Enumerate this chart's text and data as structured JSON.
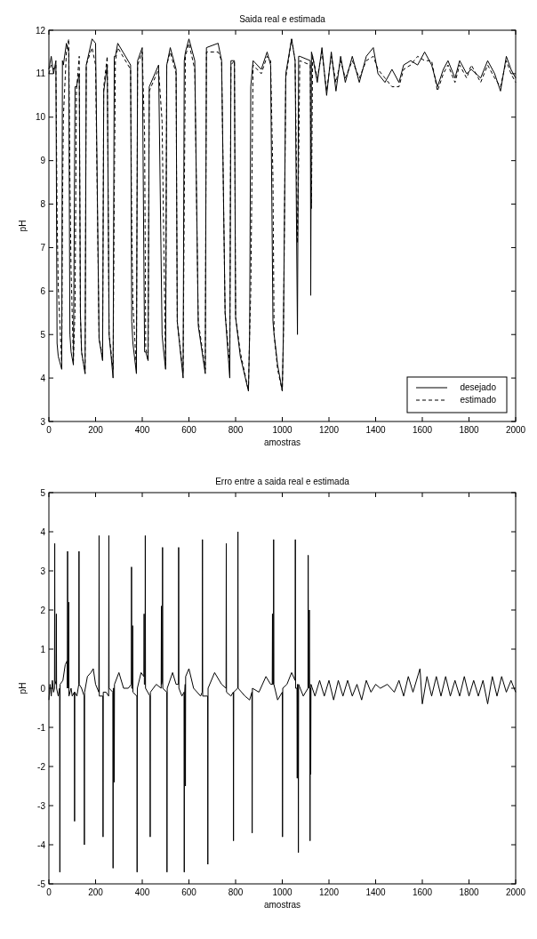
{
  "chart_data": [
    {
      "type": "line",
      "title": "Saida real e estimada",
      "xlabel": "amostras",
      "ylabel": "pH",
      "xlim": [
        0,
        2000
      ],
      "xticks": [
        0,
        200,
        400,
        600,
        800,
        1000,
        1200,
        1400,
        1600,
        1800,
        2000
      ],
      "ylim": [
        3,
        12
      ],
      "yticks": [
        3,
        4,
        5,
        6,
        7,
        8,
        9,
        10,
        11,
        12
      ],
      "grid": false,
      "legend": "bottom right",
      "x": [
        0,
        10,
        20,
        30,
        35,
        40,
        55,
        58,
        62,
        75,
        85,
        90,
        95,
        105,
        112,
        118,
        130,
        135,
        140,
        155,
        160,
        185,
        200,
        215,
        230,
        235,
        250,
        258,
        275,
        280,
        285,
        295,
        350,
        355,
        360,
        375,
        380,
        400,
        410,
        415,
        425,
        430,
        470,
        485,
        490,
        500,
        505,
        520,
        545,
        550,
        575,
        580,
        585,
        600,
        625,
        640,
        670,
        675,
        725,
        740,
        755,
        775,
        780,
        795,
        800,
        820,
        855,
        860,
        865,
        875,
        910,
        935,
        950,
        960,
        965,
        980,
        1000,
        1005,
        1015,
        1040,
        1055,
        1065,
        1070,
        1075,
        1120,
        1122,
        1125,
        1130,
        1150,
        1170,
        1190,
        1210,
        1230,
        1250,
        1270,
        1300,
        1330,
        1360,
        1390,
        1410,
        1440,
        1470,
        1500,
        1520,
        1550,
        1580,
        1610,
        1640,
        1665,
        1690,
        1710,
        1740,
        1760,
        1790,
        1810,
        1850,
        1880,
        1910,
        1935,
        1960,
        1980,
        2000
      ],
      "series": [
        {
          "name": "desejado",
          "color": "#000000",
          "line_style": "solid",
          "values": [
            11.1,
            11.4,
            11.0,
            11.3,
            4.8,
            4.5,
            4.2,
            11.3,
            11.2,
            11.7,
            11.5,
            5.0,
            4.6,
            4.3,
            10.7,
            10.7,
            11.0,
            5.5,
            4.6,
            4.1,
            11.2,
            11.8,
            11.7,
            4.9,
            4.4,
            10.6,
            11.2,
            5.0,
            4.0,
            11.4,
            11.4,
            11.7,
            11.2,
            5.3,
            4.8,
            4.1,
            11.3,
            11.6,
            4.6,
            4.6,
            4.4,
            10.7,
            11.2,
            5.0,
            4.7,
            4.2,
            11.2,
            11.6,
            11.1,
            5.3,
            4.0,
            11.3,
            11.5,
            11.8,
            11.3,
            5.2,
            4.1,
            11.6,
            11.7,
            11.3,
            5.5,
            4.0,
            11.3,
            11.3,
            5.4,
            4.5,
            3.7,
            5.0,
            10.7,
            11.3,
            11.1,
            11.5,
            11.2,
            5.3,
            5.0,
            4.3,
            3.7,
            5.1,
            11.0,
            11.8,
            11.3,
            5.0,
            11.4,
            11.4,
            11.3,
            5.9,
            11.5,
            11.4,
            10.8,
            11.6,
            10.5,
            11.5,
            10.6,
            11.4,
            10.8,
            11.4,
            10.8,
            11.4,
            11.6,
            11.0,
            10.8,
            11.1,
            10.8,
            11.2,
            11.3,
            11.2,
            11.5,
            11.2,
            10.7,
            11.1,
            11.3,
            10.9,
            11.3,
            11.0,
            11.1,
            10.9,
            11.3,
            11.0,
            10.6,
            11.4,
            11.1,
            10.9
          ]
        },
        {
          "name": "estimado",
          "color": "#000000",
          "line_style": "dashed",
          "values": [
            11.0,
            11.2,
            11.1,
            11.2,
            7.8,
            6.1,
            4.3,
            7.8,
            10.0,
            11.5,
            11.8,
            8.6,
            6.5,
            4.4,
            5.6,
            10.6,
            11.4,
            5.4,
            4.6,
            4.1,
            11.2,
            11.6,
            11.2,
            4.9,
            4.5,
            10.7,
            11.4,
            5.0,
            4.2,
            8.1,
            11.3,
            11.6,
            11.1,
            7.4,
            5.7,
            4.2,
            11.2,
            11.5,
            9.6,
            4.7,
            4.4,
            10.6,
            11.1,
            9.9,
            8.0,
            4.3,
            11.2,
            11.5,
            11.0,
            5.3,
            4.1,
            8.0,
            11.4,
            11.7,
            11.1,
            5.3,
            4.2,
            11.5,
            11.5,
            11.3,
            5.5,
            4.3,
            11.2,
            11.3,
            5.4,
            4.6,
            3.7,
            5.0,
            6.0,
            11.2,
            11.0,
            11.4,
            11.3,
            8.6,
            5.0,
            4.2,
            3.7,
            5.0,
            10.9,
            11.8,
            11.3,
            7.1,
            8.9,
            11.3,
            11.2,
            9.6,
            7.9,
            11.4,
            10.9,
            11.5,
            10.6,
            11.4,
            10.8,
            11.3,
            10.9,
            11.3,
            10.9,
            11.3,
            11.4,
            11.1,
            10.9,
            10.7,
            10.7,
            11.1,
            11.2,
            11.4,
            11.3,
            11.3,
            10.6,
            11.0,
            11.2,
            10.8,
            11.2,
            10.9,
            11.2,
            10.8,
            11.2,
            10.9,
            10.7,
            11.3,
            11.0,
            10.8
          ]
        }
      ]
    },
    {
      "type": "line",
      "title": "Erro entre a saida real e estimada",
      "xlabel": "amostras",
      "ylabel": "pH",
      "xlim": [
        0,
        2000
      ],
      "xticks": [
        0,
        200,
        400,
        600,
        800,
        1000,
        1200,
        1400,
        1600,
        1800,
        2000
      ],
      "ylim": [
        -5,
        5
      ],
      "yticks": [
        -5,
        -4,
        -3,
        -2,
        -1,
        0,
        1,
        2,
        3,
        4,
        5
      ],
      "grid": false,
      "legend": false,
      "x": [
        0,
        5,
        10,
        15,
        20,
        24,
        25,
        26,
        31,
        32,
        33,
        40,
        46,
        47,
        48,
        60,
        70,
        78,
        79,
        80,
        81,
        84,
        85,
        86,
        95,
        100,
        109,
        110,
        111,
        120,
        128,
        129,
        130,
        140,
        151,
        152,
        153,
        165,
        180,
        190,
        200,
        214,
        215,
        216,
        231,
        232,
        233,
        245,
        256,
        257,
        258,
        274,
        275,
        276,
        279,
        280,
        281,
        300,
        320,
        340,
        353,
        354,
        355,
        358,
        359,
        360,
        377,
        378,
        379,
        395,
        407,
        408,
        409,
        412,
        413,
        414,
        433,
        434,
        435,
        460,
        481,
        482,
        483,
        486,
        487,
        488,
        505,
        506,
        507,
        530,
        545,
        555,
        556,
        557,
        570,
        579,
        580,
        581,
        584,
        585,
        586,
        600,
        620,
        650,
        657,
        658,
        659,
        680,
        681,
        682,
        710,
        740,
        759,
        760,
        761,
        780,
        790,
        791,
        792,
        809,
        810,
        811,
        840,
        860,
        870,
        871,
        872,
        900,
        930,
        950,
        957,
        958,
        959,
        962,
        963,
        964,
        980,
        1000,
        1001,
        1002,
        1020,
        1040,
        1055,
        1056,
        1057,
        1063,
        1064,
        1065,
        1068,
        1069,
        1070,
        1090,
        1110,
        1111,
        1112,
        1115,
        1116,
        1117,
        1118,
        1119,
        1120,
        1121,
        1122,
        1123,
        1140,
        1160,
        1180,
        1200,
        1220,
        1240,
        1260,
        1280,
        1300,
        1320,
        1340,
        1360,
        1380,
        1400,
        1420,
        1450,
        1480,
        1500,
        1520,
        1540,
        1560,
        1590,
        1600,
        1620,
        1640,
        1660,
        1680,
        1700,
        1720,
        1740,
        1760,
        1780,
        1800,
        1820,
        1840,
        1860,
        1880,
        1900,
        1920,
        1940,
        1960,
        1980,
        2000
      ],
      "series": [
        {
          "color": "#000000",
          "line_style": "solid",
          "values": [
            -0.3,
            0.1,
            -0.2,
            0.2,
            -0.1,
            0.0,
            3.7,
            0.2,
            0.1,
            1.9,
            0.0,
            -0.2,
            0.0,
            -4.7,
            0.1,
            0.2,
            0.6,
            0.7,
            0.0,
            3.5,
            0.3,
            0.0,
            2.2,
            -0.2,
            0.0,
            -0.2,
            -0.1,
            -3.4,
            -0.1,
            -0.2,
            0.1,
            3.5,
            0.1,
            0.0,
            -0.2,
            -4.0,
            -0.1,
            0.3,
            0.4,
            0.5,
            0.1,
            -0.1,
            3.9,
            -0.2,
            -0.2,
            -3.8,
            -0.1,
            -0.1,
            -0.2,
            3.9,
            0.0,
            -0.1,
            -4.6,
            0.0,
            0.0,
            -2.4,
            0.1,
            0.4,
            0.0,
            0.0,
            0.1,
            3.1,
            0.0,
            0.0,
            1.6,
            -0.1,
            -0.2,
            -4.7,
            0.0,
            0.4,
            0.3,
            1.9,
            0.1,
            0.1,
            3.9,
            0.0,
            -0.2,
            -3.8,
            -0.1,
            0.1,
            0.0,
            2.1,
            0.1,
            0.2,
            3.6,
            0.0,
            -0.1,
            -4.7,
            0.0,
            0.4,
            0.1,
            0.1,
            3.6,
            0.0,
            -0.2,
            -0.1,
            -4.7,
            -0.2,
            0.1,
            -2.5,
            0.3,
            0.5,
            0.0,
            -0.2,
            -0.1,
            3.8,
            -0.2,
            -0.2,
            -4.5,
            0.0,
            0.4,
            0.1,
            0.0,
            3.7,
            -0.1,
            -0.2,
            -0.1,
            -3.9,
            -0.1,
            0.0,
            4.0,
            0.0,
            -0.2,
            -0.3,
            -0.1,
            -3.7,
            0.0,
            -0.1,
            0.3,
            0.1,
            0.1,
            1.9,
            0.1,
            0.1,
            3.8,
            0.1,
            -0.3,
            -0.1,
            -3.8,
            0.0,
            0.1,
            0.4,
            0.2,
            3.8,
            0.0,
            0.0,
            -2.3,
            0.1,
            0.0,
            -4.2,
            0.1,
            -0.2,
            0.0,
            3.4,
            0.1,
            0.0,
            2.0,
            0.0,
            0.0,
            -3.9,
            0.0,
            0.0,
            -2.2,
            0.1,
            -0.2,
            0.2,
            -0.2,
            0.2,
            -0.3,
            0.2,
            -0.2,
            0.2,
            -0.2,
            0.1,
            -0.3,
            0.2,
            -0.1,
            0.1,
            0.0,
            0.1,
            -0.1,
            0.2,
            -0.2,
            0.3,
            -0.1,
            0.5,
            -0.4,
            0.3,
            -0.2,
            0.3,
            -0.2,
            0.3,
            -0.2,
            0.2,
            -0.2,
            0.3,
            -0.2,
            0.2,
            -0.2,
            0.2,
            -0.4,
            0.3,
            -0.2,
            0.3,
            -0.1,
            0.2,
            -0.1
          ]
        }
      ]
    }
  ]
}
